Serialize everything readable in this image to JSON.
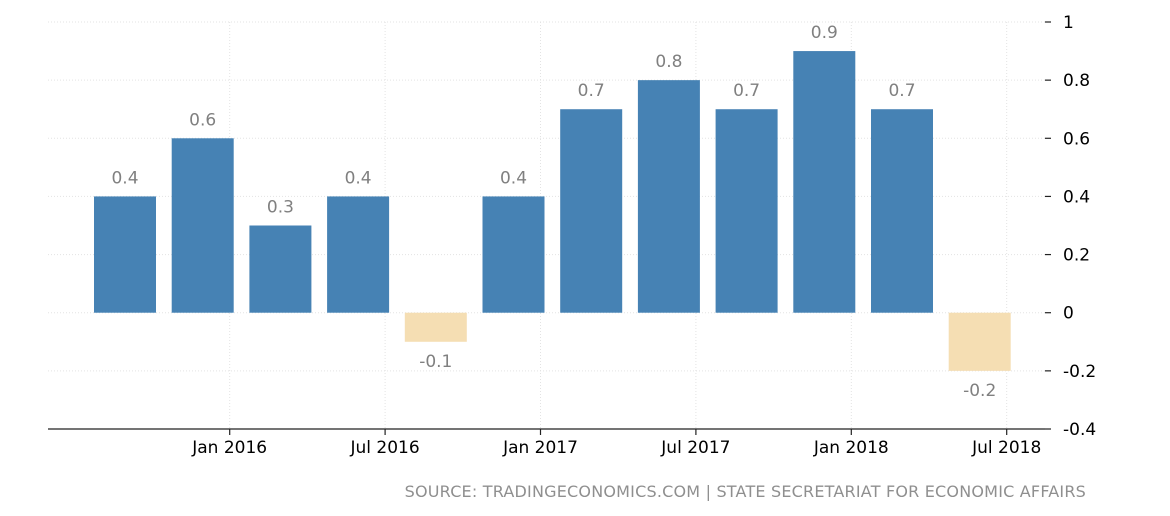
{
  "chart_data": {
    "type": "bar",
    "x": [
      "Oct 2015",
      "Jan 2016",
      "Apr 2016",
      "Jul 2016",
      "Oct 2016",
      "Jan 2017",
      "Apr 2017",
      "Jul 2017",
      "Oct 2017",
      "Jan 2018",
      "Apr 2018",
      "Jul 2018"
    ],
    "values": [
      0.4,
      0.6,
      0.3,
      0.4,
      -0.1,
      0.4,
      0.7,
      0.8,
      0.7,
      0.9,
      0.7,
      -0.2
    ],
    "data_labels": [
      "0.4",
      "0.6",
      "0.3",
      "0.4",
      "-0.1",
      "0.4",
      "0.7",
      "0.8",
      "0.7",
      "0.9",
      "0.7",
      "-0.2"
    ],
    "x_tick_labels": [
      "Jan 2016",
      "Jul 2016",
      "Jan 2017",
      "Jul 2017",
      "Jan 2018",
      "Jul 2018"
    ],
    "y_tick_labels": [
      "1",
      "0.8",
      "0.6",
      "0.4",
      "0.2",
      "0",
      "-0.2",
      "-0.4"
    ],
    "ylim": [
      -0.4,
      1
    ],
    "y_axis_position": "right",
    "grid": true,
    "colors": {
      "positive": "#4682b4",
      "negative": "#f5deb3"
    }
  },
  "source": "SOURCE: TRADINGECONOMICS.COM | STATE SECRETARIAT FOR ECONOMIC AFFAIRS"
}
